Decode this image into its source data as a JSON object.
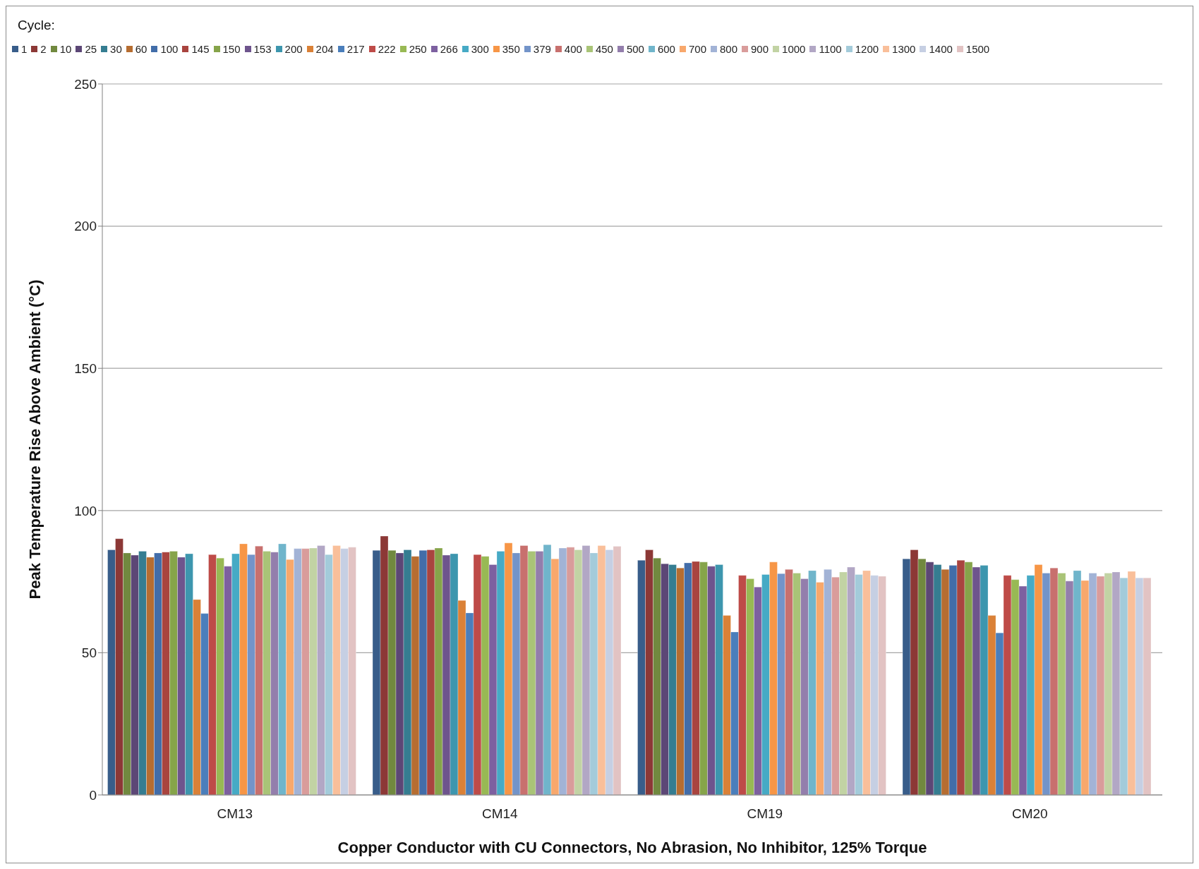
{
  "chart_data": {
    "type": "bar",
    "xlabel": "Copper Conductor with CU Connectors, No Abrasion, No Inhibitor, 125% Torque",
    "ylabel": "Peak Temperature Rise Above Ambient (°C)",
    "legend_title": "Cycle:",
    "legend": "top",
    "grid": "y",
    "ylim": [
      0,
      250
    ],
    "yticks": [
      0,
      50,
      100,
      150,
      200,
      250
    ],
    "categories": [
      "CM13",
      "CM14",
      "CM19",
      "CM20"
    ],
    "series": [
      {
        "name": "1",
        "color": "#385d8a",
        "values": [
          86.2,
          86.0,
          82.5,
          83.0
        ]
      },
      {
        "name": "2",
        "color": "#8c3836",
        "values": [
          90.1,
          91.0,
          86.2,
          86.2
        ]
      },
      {
        "name": "10",
        "color": "#71893f",
        "values": [
          85.1,
          86.0,
          83.3,
          83.0
        ]
      },
      {
        "name": "25",
        "color": "#5c4776",
        "values": [
          84.3,
          85.1,
          81.3,
          81.9
        ]
      },
      {
        "name": "30",
        "color": "#357d91",
        "values": [
          85.7,
          86.2,
          81.0,
          81.0
        ]
      },
      {
        "name": "60",
        "color": "#b66d31",
        "values": [
          83.6,
          83.9,
          79.8,
          79.3
        ]
      },
      {
        "name": "100",
        "color": "#426da9",
        "values": [
          85.1,
          86.0,
          81.6,
          80.7
        ]
      },
      {
        "name": "145",
        "color": "#a9443f",
        "values": [
          85.4,
          86.2,
          82.1,
          82.5
        ]
      },
      {
        "name": "150",
        "color": "#86a44a",
        "values": [
          85.7,
          86.8,
          81.9,
          81.9
        ]
      },
      {
        "name": "153",
        "color": "#6e548d",
        "values": [
          83.6,
          84.3,
          80.4,
          80.1
        ]
      },
      {
        "name": "200",
        "color": "#3d96ae",
        "values": [
          84.8,
          84.8,
          81.0,
          80.7
        ]
      },
      {
        "name": "204",
        "color": "#da8137",
        "values": [
          68.7,
          68.4,
          63.1,
          63.1
        ]
      },
      {
        "name": "217",
        "color": "#4a7ebb",
        "values": [
          63.8,
          64.0,
          57.3,
          57.0
        ]
      },
      {
        "name": "222",
        "color": "#be4b48",
        "values": [
          84.5,
          84.5,
          77.2,
          77.2
        ]
      },
      {
        "name": "250",
        "color": "#98b954",
        "values": [
          83.3,
          83.9,
          76.0,
          75.7
        ]
      },
      {
        "name": "266",
        "color": "#7d60a0",
        "values": [
          80.4,
          81.0,
          73.1,
          73.4
        ]
      },
      {
        "name": "300",
        "color": "#46aac5",
        "values": [
          84.8,
          85.7,
          77.5,
          77.2
        ]
      },
      {
        "name": "350",
        "color": "#f79646",
        "values": [
          88.3,
          88.6,
          81.9,
          81.0
        ]
      },
      {
        "name": "379",
        "color": "#7394c9",
        "values": [
          84.5,
          85.1,
          77.8,
          78.0
        ]
      },
      {
        "name": "400",
        "color": "#c8706e",
        "values": [
          87.5,
          87.7,
          79.3,
          79.8
        ]
      },
      {
        "name": "450",
        "color": "#a9c477",
        "values": [
          85.7,
          85.7,
          78.0,
          78.0
        ]
      },
      {
        "name": "500",
        "color": "#937eac",
        "values": [
          85.4,
          85.7,
          76.0,
          75.2
        ]
      },
      {
        "name": "600",
        "color": "#70b5cb",
        "values": [
          88.3,
          88.0,
          78.9,
          78.9
        ]
      },
      {
        "name": "700",
        "color": "#f8a86c",
        "values": [
          82.8,
          83.0,
          74.8,
          75.4
        ]
      },
      {
        "name": "800",
        "color": "#a2b3d6",
        "values": [
          86.6,
          86.8,
          79.3,
          78.0
        ]
      },
      {
        "name": "900",
        "color": "#d99c9b",
        "values": [
          86.6,
          87.1,
          76.6,
          76.9
        ]
      },
      {
        "name": "1000",
        "color": "#c2d3a4",
        "values": [
          86.8,
          86.2,
          78.4,
          78.0
        ]
      },
      {
        "name": "1100",
        "color": "#b2a7c5",
        "values": [
          87.7,
          87.7,
          80.1,
          78.4
        ]
      },
      {
        "name": "1200",
        "color": "#a3cbda",
        "values": [
          84.5,
          85.1,
          77.5,
          76.3
        ]
      },
      {
        "name": "1300",
        "color": "#f9bf9a",
        "values": [
          87.7,
          87.7,
          78.9,
          78.6
        ]
      },
      {
        "name": "1400",
        "color": "#c6cfe3",
        "values": [
          86.6,
          86.2,
          77.2,
          76.3
        ]
      },
      {
        "name": "1500",
        "color": "#e2c3c3",
        "values": [
          87.1,
          87.4,
          76.9,
          76.3
        ]
      }
    ]
  }
}
